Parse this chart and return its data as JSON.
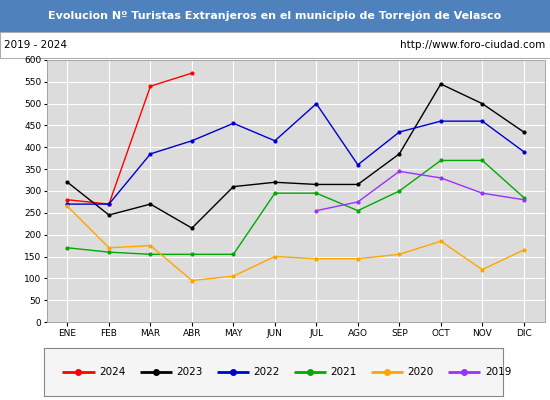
{
  "title": "Evolucion Nº Turistas Extranjeros en el municipio de Torrejón de Velasco",
  "subtitle_left": "2019 - 2024",
  "subtitle_right": "http://www.foro-ciudad.com",
  "title_bg_color": "#4f81bd",
  "title_text_color": "#ffffff",
  "subtitle_bg_color": "#ffffff",
  "subtitle_text_color": "#000000",
  "plot_bg_color": "#dcdcdc",
  "grid_color": "#ffffff",
  "months": [
    "ENE",
    "FEB",
    "MAR",
    "ABR",
    "MAY",
    "JUN",
    "JUL",
    "AGO",
    "SEP",
    "OCT",
    "NOV",
    "DIC"
  ],
  "ylim": [
    0,
    600
  ],
  "yticks": [
    0,
    50,
    100,
    150,
    200,
    250,
    300,
    350,
    400,
    450,
    500,
    550,
    600
  ],
  "series": {
    "2024": {
      "color": "#ff0000",
      "values": [
        280,
        270,
        540,
        570,
        null,
        null,
        null,
        null,
        null,
        null,
        null,
        null
      ]
    },
    "2023": {
      "color": "#000000",
      "values": [
        320,
        245,
        270,
        215,
        310,
        320,
        315,
        315,
        385,
        545,
        500,
        435
      ]
    },
    "2022": {
      "color": "#0000cc",
      "values": [
        270,
        270,
        385,
        415,
        455,
        415,
        500,
        360,
        435,
        460,
        460,
        390
      ]
    },
    "2021": {
      "color": "#00aa00",
      "values": [
        170,
        160,
        155,
        155,
        155,
        295,
        295,
        255,
        300,
        370,
        370,
        285
      ]
    },
    "2020": {
      "color": "#ffa500",
      "values": [
        265,
        170,
        175,
        95,
        105,
        150,
        145,
        145,
        155,
        185,
        120,
        165
      ]
    },
    "2019": {
      "color": "#9b30ff",
      "values": [
        null,
        null,
        null,
        null,
        null,
        null,
        255,
        275,
        345,
        330,
        295,
        280
      ]
    }
  },
  "legend_order": [
    "2024",
    "2023",
    "2022",
    "2021",
    "2020",
    "2019"
  ]
}
